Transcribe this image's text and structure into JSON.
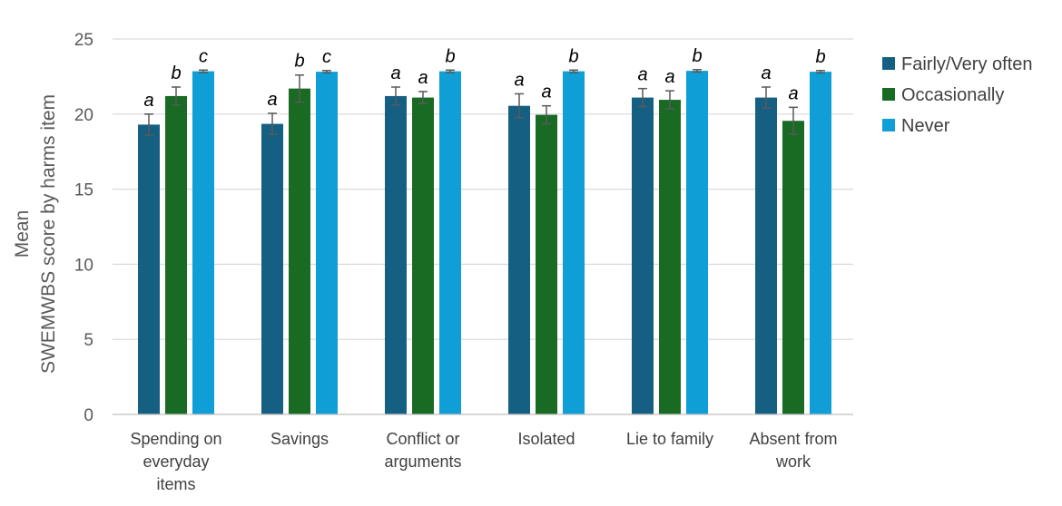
{
  "chart_data": {
    "type": "bar",
    "title": "",
    "xlabel": "",
    "ylabel": [
      "Mean",
      "SWEMWBS  score by harms item"
    ],
    "ylim": [
      0,
      25
    ],
    "yticks": [
      "0",
      "5",
      "10",
      "15",
      "20",
      "25"
    ],
    "grid": true,
    "legend_position": "right",
    "categories": [
      [
        "Spending on",
        "everyday",
        "items"
      ],
      [
        "Savings"
      ],
      [
        "Conflict or",
        "arguments"
      ],
      [
        "Isolated"
      ],
      [
        "Lie to family"
      ],
      [
        "Absent from",
        "work"
      ]
    ],
    "series": [
      {
        "name": "Fairly/Very often",
        "color": "#156082",
        "values": [
          19.3,
          19.35,
          21.2,
          20.55,
          21.1,
          21.1
        ],
        "errors": [
          0.7,
          0.7,
          0.6,
          0.8,
          0.6,
          0.7
        ],
        "labels": [
          "a",
          "a",
          "a",
          "a",
          "a",
          "a"
        ]
      },
      {
        "name": "Occasionally",
        "color": "#196B24",
        "values": [
          21.2,
          21.7,
          21.1,
          19.95,
          20.95,
          19.55
        ],
        "errors": [
          0.6,
          0.9,
          0.4,
          0.6,
          0.6,
          0.9
        ],
        "labels": [
          "b",
          "b",
          "a",
          "a",
          "a",
          "a"
        ]
      },
      {
        "name": "Never",
        "color": "#0F9ED5",
        "values": [
          22.85,
          22.82,
          22.85,
          22.85,
          22.88,
          22.82
        ],
        "errors": [
          0.08,
          0.08,
          0.08,
          0.08,
          0.08,
          0.08
        ],
        "labels": [
          "c",
          "c",
          "b",
          "b",
          "b",
          "b"
        ]
      }
    ]
  }
}
